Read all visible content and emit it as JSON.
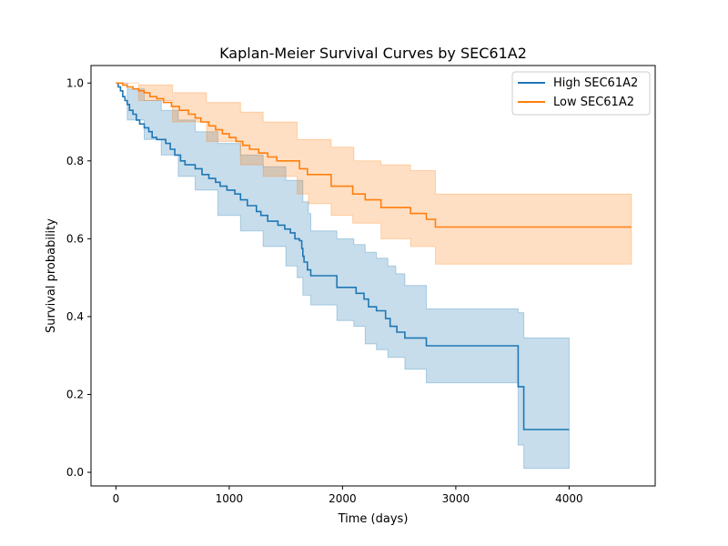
{
  "chart_data": {
    "type": "line",
    "subtype": "kaplan-meier-step",
    "title": "Kaplan-Meier Survival Curves by SEC61A2",
    "xlabel": "Time (days)",
    "ylabel": "Survival probability",
    "xlim": [
      -220,
      4760
    ],
    "ylim": [
      -0.035,
      1.045
    ],
    "xticks": [
      0,
      1000,
      2000,
      3000,
      4000
    ],
    "xtick_labels": [
      "0",
      "1000",
      "2000",
      "3000",
      "4000"
    ],
    "yticks": [
      0.0,
      0.2,
      0.4,
      0.6,
      0.8,
      1.0
    ],
    "ytick_labels": [
      "0.0",
      "0.2",
      "0.4",
      "0.6",
      "0.8",
      "1.0"
    ],
    "grid": false,
    "legend_position": "top-right",
    "series": [
      {
        "name": "High SEC61A2",
        "color": "#1f77b4",
        "band_color": "#1f77b4",
        "band_opacity": 0.25,
        "steps": [
          [
            0,
            1.0
          ],
          [
            20,
            0.99
          ],
          [
            40,
            0.98
          ],
          [
            60,
            0.965
          ],
          [
            80,
            0.955
          ],
          [
            100,
            0.945
          ],
          [
            120,
            0.93
          ],
          [
            150,
            0.92
          ],
          [
            180,
            0.905
          ],
          [
            210,
            0.895
          ],
          [
            250,
            0.885
          ],
          [
            290,
            0.875
          ],
          [
            320,
            0.86
          ],
          [
            360,
            0.855
          ],
          [
            440,
            0.845
          ],
          [
            480,
            0.83
          ],
          [
            520,
            0.815
          ],
          [
            570,
            0.8
          ],
          [
            610,
            0.79
          ],
          [
            700,
            0.78
          ],
          [
            760,
            0.765
          ],
          [
            820,
            0.755
          ],
          [
            880,
            0.745
          ],
          [
            920,
            0.735
          ],
          [
            980,
            0.725
          ],
          [
            1050,
            0.715
          ],
          [
            1100,
            0.7
          ],
          [
            1160,
            0.685
          ],
          [
            1240,
            0.67
          ],
          [
            1280,
            0.66
          ],
          [
            1340,
            0.645
          ],
          [
            1430,
            0.635
          ],
          [
            1490,
            0.625
          ],
          [
            1540,
            0.615
          ],
          [
            1580,
            0.6
          ],
          [
            1620,
            0.595
          ],
          [
            1640,
            0.575
          ],
          [
            1650,
            0.555
          ],
          [
            1660,
            0.54
          ],
          [
            1690,
            0.52
          ],
          [
            1720,
            0.505
          ],
          [
            1950,
            0.475
          ],
          [
            2120,
            0.46
          ],
          [
            2190,
            0.445
          ],
          [
            2230,
            0.425
          ],
          [
            2300,
            0.415
          ],
          [
            2380,
            0.395
          ],
          [
            2420,
            0.375
          ],
          [
            2480,
            0.36
          ],
          [
            2550,
            0.345
          ],
          [
            2740,
            0.325
          ],
          [
            3550,
            0.22
          ],
          [
            3600,
            0.11
          ],
          [
            4000,
            0.11
          ]
        ],
        "ci_upper": [
          [
            0,
            1.0
          ],
          [
            100,
            0.985
          ],
          [
            250,
            0.955
          ],
          [
            400,
            0.93
          ],
          [
            550,
            0.905
          ],
          [
            700,
            0.875
          ],
          [
            900,
            0.845
          ],
          [
            1100,
            0.815
          ],
          [
            1300,
            0.785
          ],
          [
            1500,
            0.75
          ],
          [
            1650,
            0.695
          ],
          [
            1700,
            0.665
          ],
          [
            1720,
            0.62
          ],
          [
            1950,
            0.6
          ],
          [
            2100,
            0.585
          ],
          [
            2200,
            0.565
          ],
          [
            2300,
            0.55
          ],
          [
            2400,
            0.53
          ],
          [
            2470,
            0.51
          ],
          [
            2550,
            0.48
          ],
          [
            2740,
            0.42
          ],
          [
            3550,
            0.41
          ],
          [
            3600,
            0.345
          ],
          [
            4000,
            0.345
          ]
        ],
        "ci_lower": [
          [
            0,
            1.0
          ],
          [
            100,
            0.905
          ],
          [
            250,
            0.855
          ],
          [
            400,
            0.815
          ],
          [
            550,
            0.76
          ],
          [
            700,
            0.725
          ],
          [
            900,
            0.66
          ],
          [
            1100,
            0.62
          ],
          [
            1300,
            0.58
          ],
          [
            1500,
            0.53
          ],
          [
            1600,
            0.5
          ],
          [
            1650,
            0.455
          ],
          [
            1720,
            0.43
          ],
          [
            1950,
            0.39
          ],
          [
            2100,
            0.375
          ],
          [
            2200,
            0.33
          ],
          [
            2300,
            0.315
          ],
          [
            2400,
            0.295
          ],
          [
            2550,
            0.265
          ],
          [
            2740,
            0.23
          ],
          [
            3550,
            0.07
          ],
          [
            3600,
            0.01
          ],
          [
            4000,
            0.01
          ]
        ]
      },
      {
        "name": "Low SEC61A2",
        "color": "#ff7f0e",
        "band_color": "#ff7f0e",
        "band_opacity": 0.25,
        "steps": [
          [
            0,
            1.0
          ],
          [
            60,
            0.995
          ],
          [
            100,
            0.99
          ],
          [
            150,
            0.985
          ],
          [
            200,
            0.98
          ],
          [
            250,
            0.975
          ],
          [
            300,
            0.965
          ],
          [
            360,
            0.96
          ],
          [
            420,
            0.95
          ],
          [
            490,
            0.94
          ],
          [
            560,
            0.93
          ],
          [
            640,
            0.92
          ],
          [
            700,
            0.91
          ],
          [
            750,
            0.9
          ],
          [
            820,
            0.89
          ],
          [
            880,
            0.88
          ],
          [
            940,
            0.87
          ],
          [
            1000,
            0.86
          ],
          [
            1060,
            0.85
          ],
          [
            1120,
            0.84
          ],
          [
            1180,
            0.83
          ],
          [
            1260,
            0.82
          ],
          [
            1340,
            0.81
          ],
          [
            1420,
            0.8
          ],
          [
            1620,
            0.78
          ],
          [
            1690,
            0.765
          ],
          [
            1900,
            0.735
          ],
          [
            2090,
            0.715
          ],
          [
            2200,
            0.7
          ],
          [
            2340,
            0.68
          ],
          [
            2600,
            0.665
          ],
          [
            2740,
            0.65
          ],
          [
            2820,
            0.63
          ],
          [
            4550,
            0.63
          ]
        ],
        "ci_upper": [
          [
            0,
            1.0
          ],
          [
            200,
            0.995
          ],
          [
            500,
            0.975
          ],
          [
            800,
            0.95
          ],
          [
            1100,
            0.925
          ],
          [
            1300,
            0.9
          ],
          [
            1600,
            0.855
          ],
          [
            1900,
            0.835
          ],
          [
            2100,
            0.8
          ],
          [
            2340,
            0.79
          ],
          [
            2600,
            0.775
          ],
          [
            2820,
            0.715
          ],
          [
            4550,
            0.715
          ]
        ],
        "ci_lower": [
          [
            0,
            1.0
          ],
          [
            200,
            0.955
          ],
          [
            500,
            0.9
          ],
          [
            800,
            0.85
          ],
          [
            1100,
            0.79
          ],
          [
            1300,
            0.76
          ],
          [
            1600,
            0.715
          ],
          [
            1700,
            0.69
          ],
          [
            1900,
            0.66
          ],
          [
            2090,
            0.64
          ],
          [
            2340,
            0.6
          ],
          [
            2600,
            0.58
          ],
          [
            2820,
            0.535
          ],
          [
            4550,
            0.535
          ]
        ]
      }
    ]
  }
}
